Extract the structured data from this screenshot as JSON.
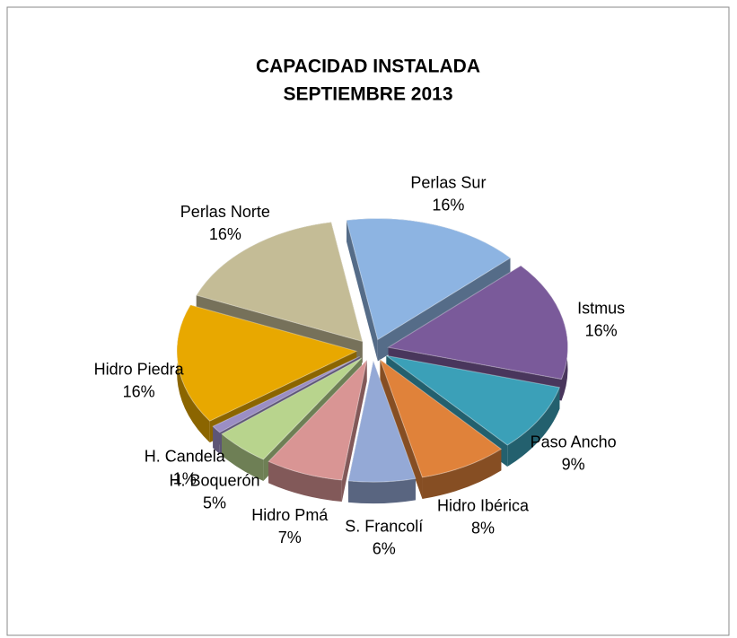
{
  "chart_data": {
    "type": "pie",
    "title": [
      "CAPACIDAD INSTALADA",
      "SEPTIEMBRE  2013"
    ],
    "categories": [
      "Perlas Sur",
      "Istmus",
      "Paso Ancho",
      "Hidro Ibérica",
      "S. Francolí",
      "Hidro Pmá",
      "H. Boquerón",
      "H. Candela",
      "Hidro Piedra",
      "Perlas Norte"
    ],
    "values": [
      16,
      16,
      9,
      8,
      6,
      7,
      5,
      1,
      16,
      16
    ],
    "value_labels": [
      "16%",
      "16%",
      "9%",
      "8%",
      "6%",
      "7%",
      "5%",
      "1%",
      "16%",
      "16%"
    ],
    "colors": [
      "#8db4e2",
      "#7a5a9a",
      "#3ba0b8",
      "#e0823a",
      "#94a9d6",
      "#d99594",
      "#b8d48d",
      "#9b8ec4",
      "#e8a800",
      "#c4bc96"
    ]
  }
}
